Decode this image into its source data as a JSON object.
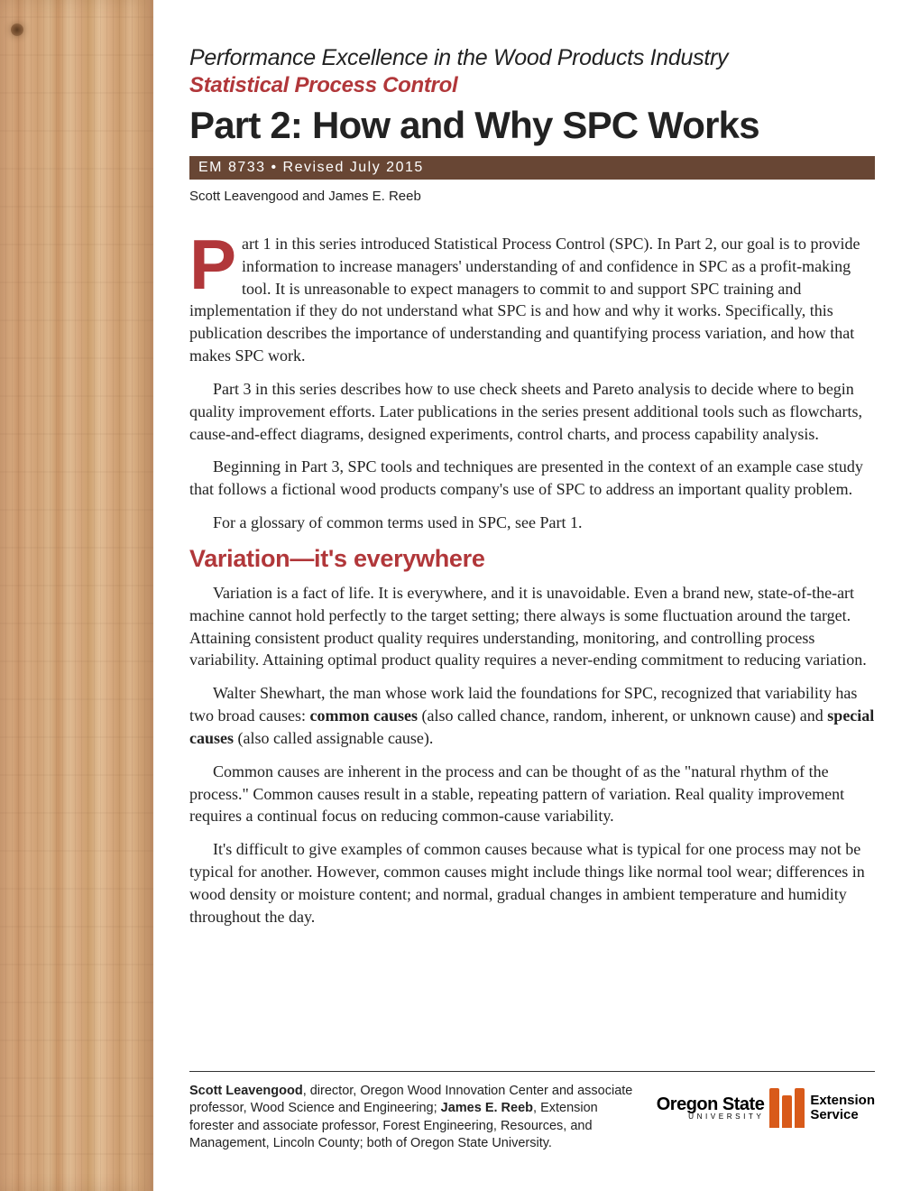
{
  "colors": {
    "accent_red": "#b1373a",
    "bar_brown": "#684634",
    "osu_orange": "#d85a1a",
    "text": "#222222",
    "background": "#ffffff"
  },
  "header": {
    "series_title": "Performance Excellence in the Wood Products Industry",
    "subtitle": "Statistical Process Control",
    "main_title": "Part 2: How and Why SPC Works",
    "pub_info": "EM 8733 • Revised July 2015",
    "authors": "Scott Leavengood and James E. Reeb"
  },
  "body": {
    "dropcap": "P",
    "p1": "art 1 in this series introduced Statistical Process Control (SPC). In Part 2, our goal is to provide information to increase managers' understanding of and confidence in SPC as a profit-making tool. It is unreasonable to expect managers to commit to and support SPC training and implementation if they do not understand what SPC is and how and why it works. Specifically, this publication describes the importance of understanding and quantifying process variation, and how that makes SPC work.",
    "p2": "Part 3 in this series describes how to use check sheets and Pareto analysis to decide where to begin quality improvement efforts. Later publications in the series present additional tools such as flowcharts, cause-and-effect diagrams, designed experiments, control charts, and process capability analysis.",
    "p3": "Beginning in Part 3, SPC tools and techniques are presented in the context of an example case study that follows a fictional wood products company's use of SPC to address an important quality problem.",
    "p4": "For a glossary of common terms used in SPC, see Part 1.",
    "section_heading": "Variation—it's everywhere",
    "p5": "Variation is a fact of life. It is everywhere, and it is unavoidable. Even a brand new, state-of-the-art machine cannot hold perfectly to the target setting; there always is some fluctuation around the target. Attaining consistent product quality requires understanding, monitoring, and controlling process variability. Attaining optimal product quality requires a never-ending commitment to reducing variation.",
    "p6a": "Walter Shewhart, the man whose work laid the foundations for SPC, recognized that variability has two broad causes: ",
    "p6b": "common causes",
    "p6c": " (also called chance, random, inherent, or unknown cause) and ",
    "p6d": "special causes",
    "p6e": " (also called assignable cause).",
    "p7": "Common causes are inherent in the process and can be thought of as the \"natural rhythm of the process.\" Common causes result in a stable, repeating pattern of variation. Real quality improvement requires a continual focus on reducing common-cause variability.",
    "p8": "It's difficult to give examples of common causes because what is typical for one process may not be typical for another. However, common causes might include things like normal tool wear; differences in wood density or moisture content; and normal, gradual changes in ambient temperature and humidity throughout the day."
  },
  "footer": {
    "bio_name1": "Scott Leavengood",
    "bio_text1": ", director, Oregon Wood Innovation Center and associate professor, Wood Science and Engineering; ",
    "bio_name2": "James E. Reeb",
    "bio_text2": ", Extension forester and associate professor, Forest Engineering, Resources, and Management, Lincoln County; both of Oregon State University.",
    "logo": {
      "line1": "Oregon State",
      "line2": "UNIVERSITY",
      "ext1": "Extension",
      "ext2": "Service"
    }
  }
}
